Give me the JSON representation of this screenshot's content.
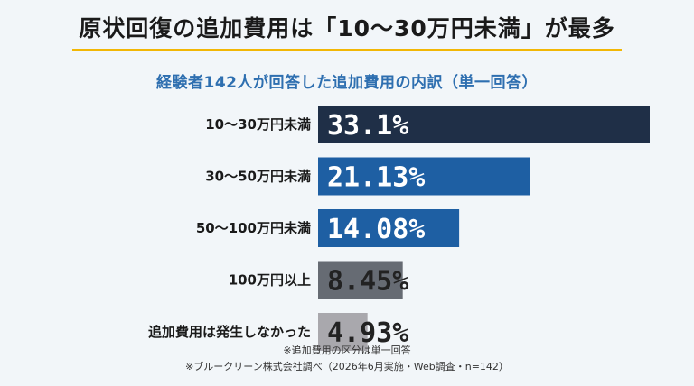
{
  "headline": "原状回復の追加費用は「10〜30万円未満」が最多",
  "colors": {
    "background": "#f2f6f9",
    "headline_underline": "#f2b705",
    "subtitle": "#2e6fb0",
    "bars": [
      "#1f2f47",
      "#1e5fa3",
      "#1e5fa3",
      "#666b73",
      "#a9a8ad"
    ],
    "value_text_on_dark": "#ffffff",
    "value_text_on_light": "#222222"
  },
  "chart_data": {
    "type": "bar",
    "orientation": "horizontal",
    "title": "経験者142人が回答した追加費用の内訳（単一回答）",
    "categories": [
      "10〜30万円未満",
      "30〜50万円未満",
      "50〜100万円未満",
      "100万円以上",
      "追加費用は発生しなかった"
    ],
    "values": [
      33.1,
      21.13,
      14.08,
      8.45,
      4.93
    ],
    "value_labels": [
      "33.1%",
      "21.13%",
      "14.08%",
      "8.45%",
      "4.93%"
    ],
    "unit": "%",
    "grid": false,
    "legend": "none"
  },
  "footnotes": [
    "※追加費用の区分は単一回答",
    "※ブルークリーン株式会社調べ（2026年6月実施・Web調査・n=142）"
  ]
}
